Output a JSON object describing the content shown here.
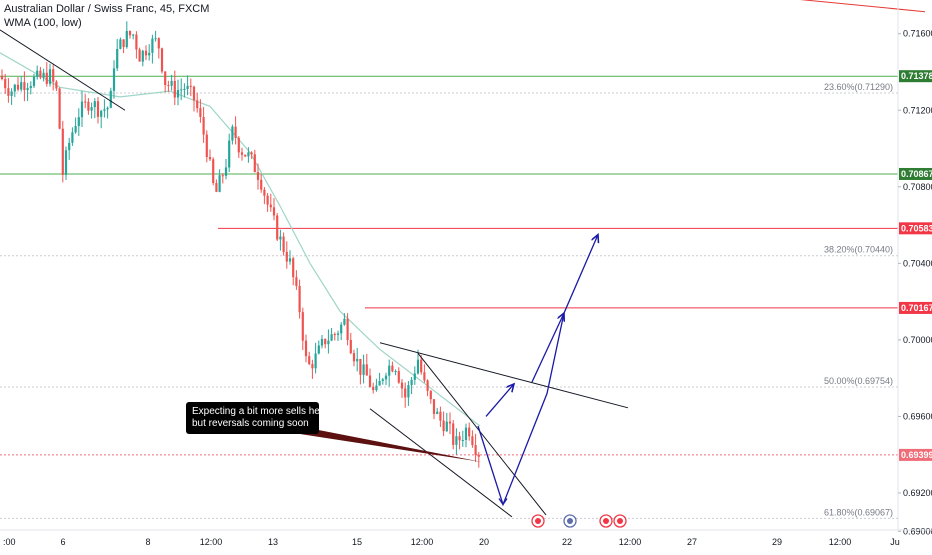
{
  "header": {
    "symbol_line": "Australian Dollar / Swiss Franc, 45, FXCM",
    "indicator_line": "WMA (100, low)"
  },
  "annotation": {
    "line1": "Expecting a bit more sells here",
    "line2": "but  reversals coming soon"
  },
  "chart_data": {
    "type": "candlestick",
    "symbol": "AUDCHF",
    "timeframe": "45",
    "source": "FXCM",
    "y_axis": {
      "range": [
        0.6897,
        0.7175
      ],
      "ticks": [
        "0.71600",
        "0.71200",
        "0.70800",
        "0.70400",
        "0.70000",
        "0.69600",
        "0.69200",
        "0.69000"
      ],
      "tick_values": [
        0.716,
        0.712,
        0.708,
        0.704,
        0.7,
        0.696,
        0.692,
        0.69
      ]
    },
    "x_axis": {
      "ticks": [
        ":00",
        "6",
        "8",
        "12:00",
        "13",
        "15",
        "12:00",
        "20",
        "22",
        "12:00",
        "27",
        "29",
        "12:00",
        "Ju"
      ]
    },
    "price_labels": [
      {
        "text": "0.71378",
        "value": 0.71378,
        "color": "#2e7d32"
      },
      {
        "text": "0.70867",
        "value": 0.70867,
        "color": "#2e7d32"
      },
      {
        "text": "0.70583",
        "value": 0.70583,
        "color": "#f23645"
      },
      {
        "text": "0.70167",
        "value": 0.70167,
        "color": "#f23645"
      },
      {
        "text": "0.69399",
        "value": 0.69399,
        "color": "#f06c77"
      }
    ],
    "fib_levels": [
      {
        "label": "23.60%(0.71290)",
        "value": 0.7129
      },
      {
        "label": "38.20%(0.70440)",
        "value": 0.7044
      },
      {
        "label": "50.00%(0.69754)",
        "value": 0.69754
      },
      {
        "label": "61.80%(0.69067)",
        "value": 0.69067
      }
    ],
    "horizontal_lines": [
      {
        "value": 0.71378,
        "color": "#4caf50"
      },
      {
        "value": 0.70867,
        "color": "#4caf50"
      },
      {
        "value": 0.70583,
        "color": "#f23645"
      },
      {
        "value": 0.70167,
        "color": "#f23645"
      },
      {
        "value": 0.69399,
        "color": "#f06c77",
        "style": "dotted"
      }
    ],
    "price_path": [
      [
        0,
        0.7138
      ],
      [
        10,
        0.713
      ],
      [
        20,
        0.7134
      ],
      [
        35,
        0.7136
      ],
      [
        50,
        0.7138
      ],
      [
        58,
        0.7128
      ],
      [
        62,
        0.7085
      ],
      [
        70,
        0.7105
      ],
      [
        78,
        0.7118
      ],
      [
        90,
        0.7125
      ],
      [
        100,
        0.712
      ],
      [
        110,
        0.7122
      ],
      [
        114,
        0.7145
      ],
      [
        118,
        0.7152
      ],
      [
        125,
        0.7158
      ],
      [
        133,
        0.716
      ],
      [
        140,
        0.7148
      ],
      [
        150,
        0.7155
      ],
      [
        158,
        0.7156
      ],
      [
        165,
        0.7135
      ],
      [
        175,
        0.713
      ],
      [
        185,
        0.7132
      ],
      [
        195,
        0.7125
      ],
      [
        205,
        0.7105
      ],
      [
        215,
        0.7075
      ],
      [
        225,
        0.709
      ],
      [
        233,
        0.711
      ],
      [
        240,
        0.71
      ],
      [
        250,
        0.7095
      ],
      [
        260,
        0.7085
      ],
      [
        268,
        0.707
      ],
      [
        278,
        0.7055
      ],
      [
        290,
        0.704
      ],
      [
        300,
        0.7015
      ],
      [
        307,
        0.6985
      ],
      [
        315,
        0.699
      ],
      [
        325,
        0.7
      ],
      [
        335,
        0.7003
      ],
      [
        345,
        0.701
      ],
      [
        352,
        0.6995
      ],
      [
        360,
        0.6985
      ],
      [
        368,
        0.698
      ],
      [
        375,
        0.697
      ],
      [
        385,
        0.6985
      ],
      [
        395,
        0.6988
      ],
      [
        405,
        0.697
      ],
      [
        412,
        0.698
      ],
      [
        418,
        0.699
      ],
      [
        425,
        0.6975
      ],
      [
        432,
        0.6965
      ],
      [
        440,
        0.6958
      ],
      [
        448,
        0.6955
      ],
      [
        455,
        0.6945
      ],
      [
        462,
        0.695
      ],
      [
        468,
        0.6955
      ],
      [
        475,
        0.6945
      ],
      [
        480,
        0.694
      ]
    ],
    "wma_path": [
      [
        0,
        0.715
      ],
      [
        60,
        0.7132
      ],
      [
        120,
        0.7127
      ],
      [
        170,
        0.713
      ],
      [
        210,
        0.7122
      ],
      [
        250,
        0.7098
      ],
      [
        280,
        0.707
      ],
      [
        310,
        0.704
      ],
      [
        340,
        0.7015
      ],
      [
        380,
        0.6995
      ],
      [
        430,
        0.6975
      ],
      [
        480,
        0.6955
      ]
    ],
    "trendlines": [
      {
        "x1": 0,
        "y1": 0.7162,
        "x2": 125,
        "y2": 0.712,
        "color": "#131722"
      },
      {
        "x1": 380,
        "y1": 0.69985,
        "x2": 628,
        "y2": 0.69645,
        "color": "#131722"
      },
      {
        "x1": 370,
        "y1": 0.6964,
        "x2": 512,
        "y2": 0.69075,
        "color": "#131722"
      },
      {
        "x1": 418,
        "y1": 0.6993,
        "x2": 546,
        "y2": 0.69085,
        "color": "#131722"
      },
      {
        "x1": 768,
        "y1": 0.71795,
        "x2": 925,
        "y2": 0.71715,
        "color": "#e53935"
      }
    ],
    "projection_arrows": [
      {
        "points": [
          [
            478,
            0.6955
          ],
          [
            503,
            0.6914
          ],
          [
            547,
            0.6972
          ],
          [
            564,
            0.7014
          ],
          [
            598,
            0.7055
          ]
        ],
        "color": "#1a1aa8"
      },
      {
        "points": [
          [
            486,
            0.696
          ],
          [
            514,
            0.6977
          ]
        ],
        "color": "#1a1aa8"
      },
      {
        "points": [
          [
            532,
            0.6978
          ],
          [
            564,
            0.7014
          ]
        ],
        "color": "#1a1aa8"
      }
    ]
  }
}
